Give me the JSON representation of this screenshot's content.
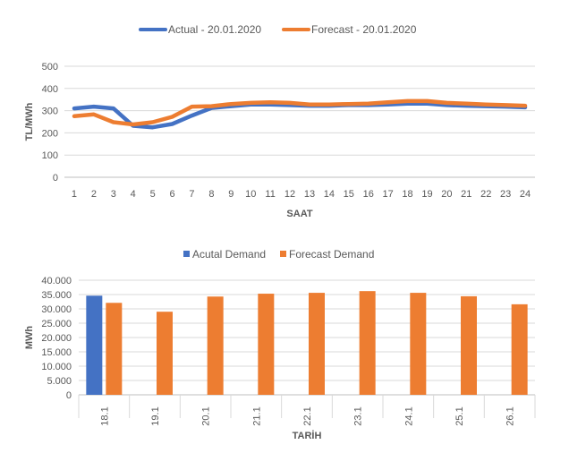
{
  "chart_data": [
    {
      "type": "line",
      "xlabel": "SAAT",
      "ylabel": "TL/MWh",
      "ylim": [
        0,
        500
      ],
      "yticks": [
        "0",
        "100",
        "200",
        "300",
        "400",
        "500"
      ],
      "grid": true,
      "legend_position": "top",
      "x": [
        1,
        2,
        3,
        4,
        5,
        6,
        7,
        8,
        9,
        10,
        11,
        12,
        13,
        14,
        15,
        16,
        17,
        18,
        19,
        20,
        21,
        22,
        23,
        24
      ],
      "series": [
        {
          "name": "Actual - 20.01.2020",
          "color": "#4472C4",
          "values": [
            310,
            318,
            310,
            232,
            225,
            240,
            278,
            312,
            320,
            328,
            328,
            325,
            322,
            322,
            325,
            325,
            328,
            332,
            332,
            325,
            322,
            320,
            318,
            315
          ]
        },
        {
          "name": "Forecast - 20.01.2020",
          "color": "#ED7D31",
          "values": [
            275,
            283,
            248,
            238,
            248,
            272,
            318,
            320,
            330,
            335,
            338,
            335,
            328,
            328,
            330,
            332,
            338,
            343,
            343,
            335,
            332,
            328,
            325,
            322
          ]
        }
      ]
    },
    {
      "type": "bar",
      "xlabel": "TARİH",
      "ylabel": "MWh",
      "ylim": [
        0,
        40000
      ],
      "yticks": [
        "0",
        "5.000",
        "10.000",
        "15.000",
        "20.000",
        "25.000",
        "30.000",
        "35.000",
        "40.000"
      ],
      "grid": true,
      "legend_position": "top",
      "categories": [
        "18.1",
        "19.1",
        "20.1",
        "21.1",
        "22.1",
        "23.1",
        "24.1",
        "25.1",
        "26.1"
      ],
      "series": [
        {
          "name": "Acutal Demand",
          "color": "#4472C4",
          "values": [
            34600,
            null,
            null,
            null,
            null,
            null,
            null,
            null,
            null
          ]
        },
        {
          "name": "Forecast Demand",
          "color": "#ED7D31",
          "values": [
            32100,
            29000,
            34300,
            35300,
            35600,
            36200,
            35600,
            34400,
            31600
          ]
        }
      ]
    }
  ]
}
